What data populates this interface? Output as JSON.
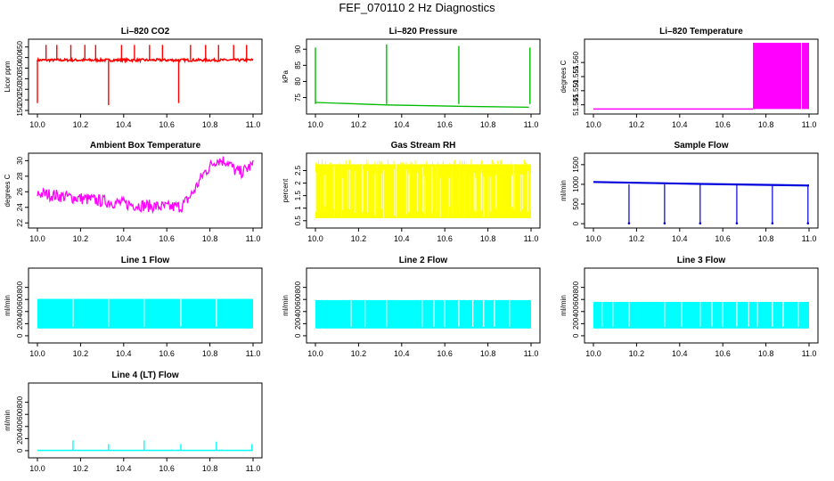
{
  "figure": {
    "title": "FEF_070110  2 Hz Diagnostics"
  },
  "chart_data": [
    {
      "id": "co2",
      "type": "line",
      "title": "Li–820 CO2",
      "ylabel": "Licor ppm",
      "xlim": [
        10.0,
        11.0
      ],
      "ylim": [
        150,
        470
      ],
      "yticks": [
        150,
        200,
        250,
        300,
        350,
        400,
        450
      ],
      "xticks": [
        10.0,
        10.2,
        10.4,
        10.6,
        10.8,
        11.0
      ],
      "color": "#ff0000",
      "series": [
        {
          "baseline": 388,
          "noise": 6,
          "events": [
            {
              "x": 10.04,
              "y": 460
            },
            {
              "x": 10.09,
              "y": 460
            },
            {
              "x": 10.155,
              "y": 460
            },
            {
              "x": 10.22,
              "y": 460
            },
            {
              "x": 10.27,
              "y": 460
            },
            {
              "x": 10.33,
              "y": 175
            },
            {
              "x": 10.39,
              "y": 460
            },
            {
              "x": 10.45,
              "y": 460
            },
            {
              "x": 10.52,
              "y": 460
            },
            {
              "x": 10.58,
              "y": 460
            },
            {
              "x": 10.655,
              "y": 185
            },
            {
              "x": 10.71,
              "y": 460
            },
            {
              "x": 10.78,
              "y": 460
            },
            {
              "x": 10.84,
              "y": 460
            },
            {
              "x": 10.91,
              "y": 460
            },
            {
              "x": 10.97,
              "y": 460
            },
            {
              "x": 10.0,
              "y": 185
            }
          ]
        }
      ]
    },
    {
      "id": "pressure",
      "type": "line",
      "title": "Li–820 Pressure",
      "ylabel": "kPa",
      "xlim": [
        10.0,
        11.0
      ],
      "ylim": [
        71,
        92
      ],
      "yticks": [
        75,
        80,
        85,
        90
      ],
      "xticks": [
        10.0,
        10.2,
        10.4,
        10.6,
        10.8,
        11.0
      ],
      "color": "#00bb00",
      "series": [
        {
          "points": [
            [
              10.0,
              73.5
            ],
            [
              10.33,
              72.7
            ],
            [
              10.66,
              72.3
            ],
            [
              10.99,
              72.0
            ]
          ],
          "events": [
            {
              "x": 10.0,
              "y": 90.5
            },
            {
              "x": 10.33,
              "y": 91.5
            },
            {
              "x": 10.665,
              "y": 91.0
            },
            {
              "x": 10.995,
              "y": 90.5
            }
          ]
        }
      ]
    },
    {
      "id": "temperature",
      "type": "area",
      "title": "Li–820 Temperature",
      "ylabel": "degrees C",
      "xlim": [
        10.0,
        11.0
      ],
      "ylim": [
        51.543,
        51.567
      ],
      "yticks": [
        51.545,
        51.55,
        51.555,
        51.56
      ],
      "ytick_labels": [
        "51.545",
        "51.550",
        "51.555",
        "51.560"
      ],
      "xticks": [
        10.0,
        10.2,
        10.4,
        10.6,
        10.8,
        11.0
      ],
      "color": "#ff00ff",
      "series": [
        {
          "low_value": 51.5435,
          "low_range": [
            10.0,
            10.74
          ],
          "high_value": 51.567,
          "high_range": [
            10.74,
            11.0
          ]
        }
      ]
    },
    {
      "id": "ambient",
      "type": "line",
      "title": "Ambient Box Temperature",
      "ylabel": "degrees C",
      "xlim": [
        10.0,
        11.0
      ],
      "ylim": [
        21.8,
        30.5
      ],
      "yticks": [
        22,
        24,
        26,
        28,
        30
      ],
      "xticks": [
        10.0,
        10.2,
        10.4,
        10.6,
        10.8,
        11.0
      ],
      "color": "#ff00ff",
      "series": [
        {
          "points": [
            [
              10.0,
              25.5
            ],
            [
              10.15,
              25.0
            ],
            [
              10.3,
              24.5
            ],
            [
              10.45,
              24.0
            ],
            [
              10.6,
              23.7
            ],
            [
              10.67,
              23.8
            ],
            [
              10.72,
              25.5
            ],
            [
              10.77,
              28.0
            ],
            [
              10.83,
              29.8
            ],
            [
              10.88,
              29.6
            ],
            [
              10.92,
              28.3
            ],
            [
              10.95,
              28.2
            ],
            [
              10.99,
              29.0
            ]
          ],
          "band": 1.6
        }
      ]
    },
    {
      "id": "rh",
      "type": "area",
      "title": "Gas Stream RH",
      "ylabel": "percent",
      "xlim": [
        10.0,
        11.0
      ],
      "ylim": [
        0.35,
        3.05
      ],
      "yticks": [
        0.5,
        1.0,
        1.5,
        2.0,
        2.5
      ],
      "xticks": [
        10.0,
        10.2,
        10.4,
        10.6,
        10.8,
        11.0
      ],
      "color": "#ffff00",
      "series": [
        {
          "low": 0.6,
          "high": 2.75
        }
      ]
    },
    {
      "id": "sampleflow",
      "type": "line",
      "title": "Sample Flow",
      "ylabel": "ml/min",
      "xlim": [
        10.0,
        11.0
      ],
      "ylim": [
        -20,
        1700
      ],
      "yticks": [
        0,
        500,
        1000,
        1500
      ],
      "xticks": [
        10.0,
        10.2,
        10.4,
        10.6,
        10.8,
        11.0
      ],
      "color": "#0000dd",
      "series": [
        {
          "points": [
            [
              10.0,
              1060
            ],
            [
              10.5,
              1010
            ],
            [
              11.0,
              970
            ]
          ],
          "events": [
            {
              "x": 10.165,
              "y": 10
            },
            {
              "x": 10.33,
              "y": 10
            },
            {
              "x": 10.495,
              "y": 10
            },
            {
              "x": 10.665,
              "y": 10
            },
            {
              "x": 10.83,
              "y": 10
            },
            {
              "x": 10.995,
              "y": 10
            }
          ]
        }
      ]
    },
    {
      "id": "line1",
      "type": "area",
      "title": "Line 1 Flow",
      "ylabel": "ml/min",
      "xlim": [
        10.0,
        11.0
      ],
      "ylim": [
        -60,
        1060
      ],
      "yticks": [
        0,
        200,
        400,
        600,
        800
      ],
      "xticks": [
        10.0,
        10.2,
        10.4,
        10.6,
        10.8,
        11.0
      ],
      "color": "#00ffff",
      "series": [
        {
          "low": 120,
          "high": 610,
          "gaps": [
            10.165,
            10.33,
            10.495,
            10.665,
            10.83
          ]
        }
      ]
    },
    {
      "id": "line2",
      "type": "area",
      "title": "Line 2 Flow",
      "ylabel": "ml/min",
      "xlim": [
        10.0,
        11.0
      ],
      "ylim": [
        -60,
        1060
      ],
      "yticks": [
        0,
        200,
        400,
        600,
        800
      ],
      "xticks": [
        10.0,
        10.2,
        10.4,
        10.6,
        10.8,
        11.0
      ],
      "color": "#00ffff",
      "series": [
        {
          "low": 120,
          "high": 590,
          "gaps": [
            10.165,
            10.23,
            10.33,
            10.495,
            10.55,
            10.6,
            10.665,
            10.73,
            10.78,
            10.83,
            10.9
          ]
        }
      ]
    },
    {
      "id": "line3",
      "type": "area",
      "title": "Line 3 Flow",
      "ylabel": "ml/min",
      "xlim": [
        10.0,
        11.0
      ],
      "ylim": [
        -60,
        1060
      ],
      "yticks": [
        0,
        200,
        400,
        600,
        800
      ],
      "xticks": [
        10.0,
        10.2,
        10.4,
        10.6,
        10.8,
        11.0
      ],
      "color": "#00ffff",
      "series": [
        {
          "low": 120,
          "high": 560,
          "gaps": [
            10.04,
            10.09,
            10.165,
            10.33,
            10.41,
            10.495,
            10.55,
            10.6,
            10.665,
            10.72,
            10.76,
            10.83,
            10.88,
            10.95
          ]
        }
      ]
    },
    {
      "id": "line4",
      "type": "line",
      "title": "Line 4 (LT) Flow",
      "ylabel": "ml/min",
      "xlim": [
        10.0,
        11.0
      ],
      "ylim": [
        -60,
        1060
      ],
      "yticks": [
        0,
        200,
        400,
        600,
        800
      ],
      "xticks": [
        10.0,
        10.2,
        10.4,
        10.6,
        10.8,
        11.0
      ],
      "color": "#00ffff",
      "series": [
        {
          "baseline": 5,
          "events": [
            {
              "x": 10.165,
              "y": 170
            },
            {
              "x": 10.33,
              "y": 110
            },
            {
              "x": 10.495,
              "y": 170
            },
            {
              "x": 10.665,
              "y": 110
            },
            {
              "x": 10.83,
              "y": 150
            },
            {
              "x": 10.995,
              "y": 110
            }
          ]
        }
      ]
    }
  ]
}
